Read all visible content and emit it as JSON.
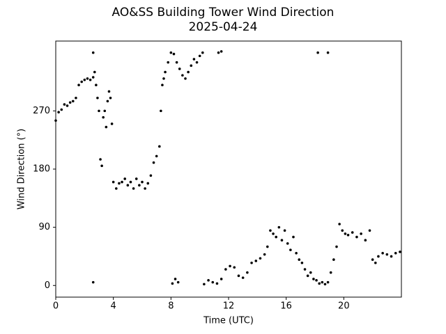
{
  "chart_data": {
    "type": "scatter",
    "title": "AO&SS Building Tower Wind Direction",
    "subtitle": "2025-04-24",
    "x_label": "Time (UTC)",
    "y_label": "Wind Direction (°)",
    "color": "#000000",
    "x": [
      0.0,
      0.2,
      0.4,
      0.6,
      0.8,
      1.0,
      1.2,
      1.4,
      1.6,
      1.8,
      2.0,
      2.2,
      2.4,
      2.6,
      2.6,
      2.7,
      2.8,
      2.9,
      3.0,
      3.1,
      3.2,
      3.3,
      3.4,
      3.5,
      3.6,
      3.7,
      3.8,
      3.9,
      4.0,
      4.2,
      4.4,
      4.6,
      4.8,
      5.0,
      5.2,
      5.4,
      5.6,
      5.8,
      6.0,
      6.2,
      6.4,
      6.6,
      6.8,
      7.0,
      7.2,
      7.3,
      7.4,
      7.5,
      7.6,
      7.8,
      8.0,
      8.2,
      8.4,
      8.6,
      8.8,
      9.0,
      9.2,
      9.4,
      9.6,
      9.8,
      10.0,
      10.2,
      11.3,
      11.5,
      2.6,
      8.1,
      8.3,
      8.5,
      10.3,
      10.6,
      10.9,
      11.2,
      11.5,
      11.8,
      12.1,
      12.4,
      12.7,
      13.0,
      13.3,
      13.6,
      13.9,
      14.2,
      14.5,
      14.7,
      14.9,
      15.1,
      15.3,
      15.5,
      15.7,
      15.9,
      16.1,
      16.3,
      16.5,
      16.7,
      16.9,
      17.1,
      17.3,
      17.5,
      17.7,
      17.9,
      18.1,
      18.3,
      18.5,
      18.7,
      18.9,
      19.1,
      19.3,
      19.5,
      19.7,
      19.9,
      20.1,
      20.3,
      20.6,
      20.9,
      21.2,
      21.5,
      21.8,
      22.0,
      22.2,
      22.4,
      22.7,
      23.0,
      23.3,
      23.6,
      23.9,
      18.2,
      18.9
    ],
    "y": [
      255,
      268,
      272,
      280,
      278,
      283,
      285,
      290,
      310,
      315,
      318,
      320,
      318,
      322,
      360,
      330,
      310,
      290,
      270,
      195,
      185,
      260,
      270,
      245,
      285,
      300,
      290,
      250,
      160,
      150,
      158,
      160,
      165,
      155,
      160,
      150,
      165,
      155,
      160,
      150,
      158,
      170,
      190,
      200,
      215,
      270,
      310,
      320,
      330,
      345,
      360,
      358,
      345,
      335,
      325,
      320,
      330,
      340,
      350,
      345,
      355,
      360,
      360,
      362,
      5,
      3,
      10,
      5,
      2,
      8,
      5,
      3,
      10,
      25,
      30,
      28,
      15,
      12,
      20,
      35,
      38,
      42,
      48,
      60,
      85,
      80,
      75,
      90,
      70,
      85,
      65,
      55,
      75,
      50,
      40,
      35,
      25,
      15,
      20,
      10,
      8,
      3,
      5,
      2,
      5,
      20,
      40,
      60,
      95,
      85,
      80,
      78,
      82,
      75,
      80,
      70,
      85,
      40,
      35,
      45,
      50,
      48,
      45,
      50,
      52,
      360,
      360
    ],
    "xlim": [
      0,
      24
    ],
    "ylim": [
      -18,
      378
    ],
    "xticks": [
      0,
      4,
      8,
      12,
      16,
      20
    ],
    "yticks": [
      0,
      90,
      180,
      270
    ]
  }
}
